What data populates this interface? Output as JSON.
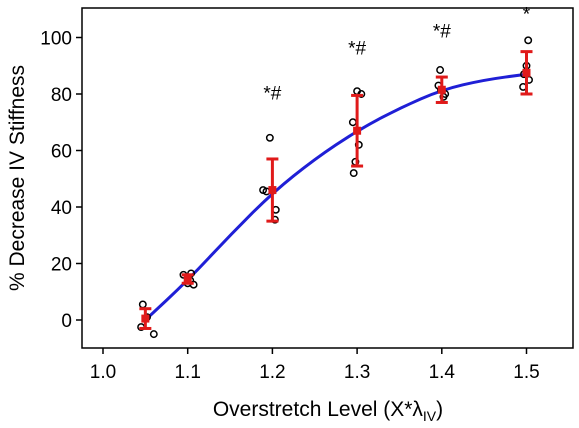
{
  "chart_data": {
    "type": "scatter",
    "xlabel_main": "Overstretch Level (X*",
    "xlabel_symbol": "λ",
    "xlabel_sub": "IV",
    "xlabel_close": ")",
    "ylabel": "% Decrease IV Stiffness",
    "xlim": [
      1.0,
      1.55
    ],
    "ylim": [
      -8,
      106
    ],
    "xticks": [
      "1.0",
      "1.1",
      "1.2",
      "1.3",
      "1.4",
      "1.5"
    ],
    "yticks": [
      "0",
      "20",
      "40",
      "60",
      "80",
      "100"
    ],
    "grid": false,
    "colors": {
      "fit_line": "#1f1fd6",
      "mean_errorbar": "#e01a1a",
      "individual_points": "#000000"
    },
    "series": [
      {
        "kind": "fit_curve",
        "x": [
          1.05,
          1.1,
          1.15,
          1.2,
          1.25,
          1.3,
          1.35,
          1.4,
          1.45,
          1.5
        ],
        "y": [
          0,
          14,
          30,
          45,
          57,
          67,
          75,
          81.5,
          85,
          87
        ]
      },
      {
        "kind": "mean_sd",
        "x": [
          1.05,
          1.1,
          1.2,
          1.3,
          1.4,
          1.5
        ],
        "mean": [
          0.5,
          14.5,
          46,
          67,
          81.5,
          87.5
        ],
        "sd": [
          3.5,
          1.5,
          11,
          12.5,
          4.5,
          7.5
        ]
      },
      {
        "kind": "individual",
        "points": [
          [
            1.047,
            5.5
          ],
          [
            1.045,
            -2.5
          ],
          [
            1.06,
            -5
          ],
          [
            1.052,
            1
          ],
          [
            1.095,
            16
          ],
          [
            1.103,
            14
          ],
          [
            1.1,
            13
          ],
          [
            1.107,
            12.5
          ],
          [
            1.104,
            16.5
          ],
          [
            1.197,
            64.5
          ],
          [
            1.189,
            46
          ],
          [
            1.204,
            39
          ],
          [
            1.203,
            35.5
          ],
          [
            1.193,
            45.5
          ],
          [
            1.3,
            81
          ],
          [
            1.295,
            70
          ],
          [
            1.302,
            62
          ],
          [
            1.298,
            56
          ],
          [
            1.296,
            52
          ],
          [
            1.305,
            80
          ],
          [
            1.398,
            88.5
          ],
          [
            1.402,
            79
          ],
          [
            1.396,
            83
          ],
          [
            1.404,
            80
          ],
          [
            1.399,
            81.5
          ],
          [
            1.502,
            99
          ],
          [
            1.497,
            87
          ],
          [
            1.503,
            85
          ],
          [
            1.496,
            82.5
          ],
          [
            1.5,
            90
          ]
        ]
      }
    ],
    "annotations": [
      {
        "x": 1.2,
        "y": 78,
        "text": "*#"
      },
      {
        "x": 1.3,
        "y": 94,
        "text": "*#"
      },
      {
        "x": 1.4,
        "y": 100,
        "text": "*#"
      },
      {
        "x": 1.5,
        "y": 106,
        "text": "*"
      }
    ]
  }
}
